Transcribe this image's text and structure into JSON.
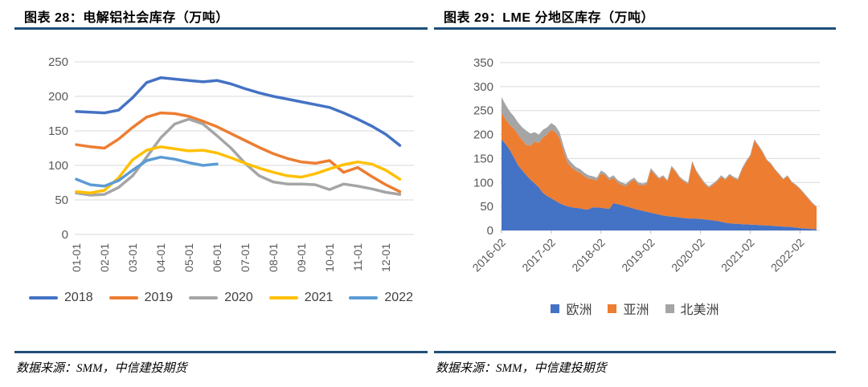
{
  "left_panel": {
    "title": "图表 28：电解铝社会库存（万吨）",
    "source": "数据来源：SMM，中信建投期货"
  },
  "right_panel": {
    "title": "图表 29：LME 分地区库存（万吨）",
    "source": "数据来源：SMM，中信建投期货"
  },
  "colors": {
    "title_rule": "#1F4E79",
    "grid": "#D9D9D9",
    "axis_text": "#595959",
    "legend_text": "#404040"
  },
  "chart_data": [
    {
      "type": "line",
      "title": "电解铝社会库存（万吨）",
      "ylabel": "",
      "xlabel": "",
      "ylim": [
        0,
        250
      ],
      "ytick_step": 50,
      "grid": true,
      "legend_position": "bottom",
      "x_unit": "semi-monthly",
      "x_tick_labels": [
        "01-01",
        "02-01",
        "03-01",
        "04-01",
        "05-01",
        "06-01",
        "07-01",
        "08-01",
        "09-01",
        "10-01",
        "11-01",
        "12-01"
      ],
      "x_tick_indices": [
        0,
        2,
        4,
        6,
        8,
        10,
        12,
        14,
        16,
        18,
        20,
        22
      ],
      "n_points": 24,
      "series": [
        {
          "name": "2018",
          "color": "#4472C4",
          "values": [
            178,
            177,
            176,
            180,
            198,
            220,
            227,
            225,
            223,
            221,
            223,
            218,
            211,
            205,
            200,
            196,
            192,
            188,
            184,
            176,
            167,
            157,
            145,
            129
          ]
        },
        {
          "name": "2019",
          "color": "#ED7D31",
          "values": [
            130,
            127,
            125,
            138,
            155,
            170,
            176,
            175,
            171,
            164,
            156,
            146,
            136,
            126,
            117,
            110,
            105,
            103,
            107,
            90,
            97,
            84,
            72,
            62
          ]
        },
        {
          "name": "2020",
          "color": "#A5A5A5",
          "values": [
            60,
            57,
            58,
            68,
            85,
            112,
            140,
            160,
            167,
            160,
            143,
            125,
            103,
            85,
            76,
            73,
            73,
            72,
            65,
            73,
            70,
            66,
            61,
            58
          ]
        },
        {
          "name": "2021",
          "color": "#FFC000",
          "values": [
            62,
            60,
            64,
            82,
            108,
            122,
            127,
            124,
            121,
            122,
            118,
            111,
            103,
            96,
            90,
            85,
            83,
            88,
            95,
            101,
            105,
            102,
            93,
            80
          ]
        },
        {
          "name": "2022",
          "color": "#5B9BD5",
          "values": [
            80,
            72,
            70,
            78,
            93,
            107,
            112,
            109,
            104,
            100,
            102
          ]
        }
      ]
    },
    {
      "type": "area",
      "stacked": true,
      "title": "LME 分地区库存（万吨）",
      "ylabel": "",
      "xlabel": "",
      "ylim": [
        0,
        350
      ],
      "ytick_step": 50,
      "grid": true,
      "legend_position": "bottom",
      "x_unit": "monthly",
      "x_range": [
        "2016-02",
        "2022-06"
      ],
      "x_tick_labels": [
        "2016-02",
        "2017-02",
        "2018-02",
        "2019-02",
        "2020-02",
        "2021-02",
        "2022-02"
      ],
      "x_tick_indices": [
        0,
        12,
        24,
        36,
        48,
        60,
        72
      ],
      "n_points": 77,
      "series": [
        {
          "name": "欧洲",
          "color": "#4472C4",
          "values": [
            190,
            180,
            168,
            152,
            136,
            125,
            115,
            106,
            98,
            90,
            78,
            72,
            67,
            62,
            57,
            53,
            50,
            48,
            47,
            46,
            44,
            44,
            48,
            48,
            47,
            46,
            45,
            57,
            55,
            53,
            50,
            48,
            45,
            43,
            41,
            39,
            37,
            35,
            33,
            31,
            30,
            29,
            28,
            27,
            26,
            25,
            25,
            25,
            24,
            23,
            22,
            21,
            20,
            18,
            16,
            15,
            14,
            14,
            13,
            13,
            12,
            12,
            11,
            11,
            10,
            10,
            9,
            9,
            8,
            8,
            7,
            6,
            5,
            4,
            4,
            3,
            3
          ]
        },
        {
          "name": "亚洲",
          "color": "#ED7D31",
          "values": [
            55,
            52,
            52,
            60,
            64,
            63,
            63,
            71,
            87,
            92,
            116,
            128,
            143,
            143,
            136,
            111,
            90,
            83,
            77,
            74,
            69,
            64,
            59,
            56,
            72,
            69,
            60,
            53,
            45,
            42,
            42,
            53,
            61,
            53,
            53,
            57,
            89,
            81,
            74,
            81,
            72,
            103,
            94,
            82,
            76,
            72,
            117,
            97,
            85,
            74,
            67,
            74,
            82,
            94,
            89,
            100,
            95,
            91,
            114,
            129,
            143,
            175,
            164,
            151,
            136,
            128,
            117,
            107,
            98,
            105,
            93,
            88,
            81,
            72,
            62,
            53,
            45
          ]
        },
        {
          "name": "北美洲",
          "color": "#A5A5A5",
          "values": [
            33,
            30,
            28,
            26,
            25,
            27,
            30,
            25,
            20,
            18,
            16,
            15,
            14,
            13,
            12,
            11,
            10,
            9,
            8,
            8,
            7,
            7,
            6,
            6,
            6,
            5,
            5,
            5,
            5,
            5,
            5,
            4,
            4,
            4,
            4,
            4,
            4,
            4,
            3,
            3,
            3,
            3,
            3,
            3,
            3,
            3,
            3,
            3,
            3,
            3,
            3,
            3,
            3,
            3,
            3,
            3,
            3,
            3,
            3,
            3,
            3,
            3,
            3,
            3,
            2,
            2,
            2,
            2,
            2,
            2,
            2,
            2,
            2,
            2,
            2,
            2,
            2
          ]
        }
      ]
    }
  ]
}
